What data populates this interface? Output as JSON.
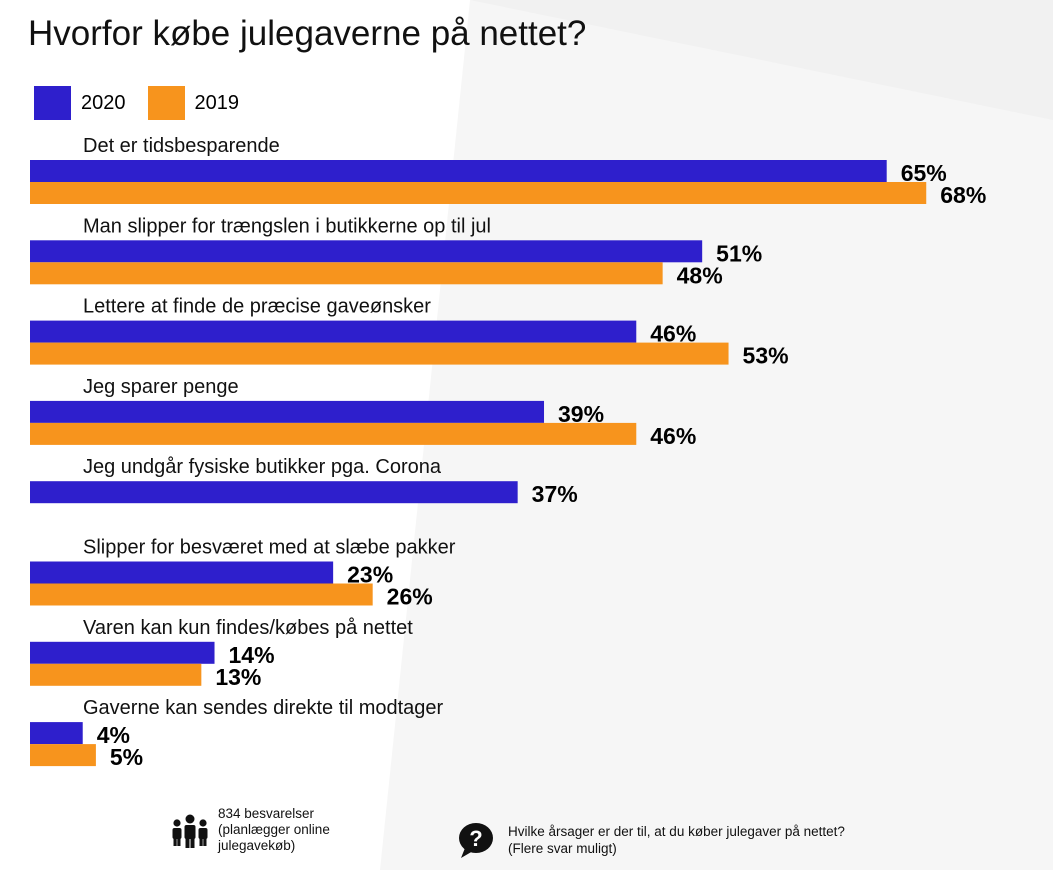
{
  "title": "Hvorfor købe julegaverne på nettet?",
  "legend": [
    {
      "label": "2020",
      "color": "#2E1FCC"
    },
    {
      "label": "2019",
      "color": "#F7941D"
    }
  ],
  "chart_data": {
    "type": "bar",
    "orientation": "horizontal",
    "title": "Hvorfor købe julegaverne på nettet?",
    "unit": "%",
    "categories": [
      "Det er tidsbesparende",
      "Man slipper for trængslen i butikkerne op til jul",
      "Lettere at finde de præcise gaveønsker",
      "Jeg sparer penge",
      "Jeg undgår fysiske butikker pga. Corona",
      "Slipper for besværet med at slæbe pakker",
      "Varen kan kun findes/købes på nettet",
      "Gaverne kan sendes direkte til modtager"
    ],
    "series": [
      {
        "name": "2020",
        "color": "#2E1FCC",
        "values": [
          65,
          51,
          46,
          39,
          37,
          23,
          14,
          4
        ]
      },
      {
        "name": "2019",
        "color": "#F7941D",
        "values": [
          68,
          48,
          53,
          46,
          null,
          26,
          13,
          5
        ]
      }
    ],
    "value_labels": [
      [
        "65%",
        "68%"
      ],
      [
        "51%",
        "48%"
      ],
      [
        "46%",
        "53%"
      ],
      [
        "39%",
        "46%"
      ],
      [
        "37%",
        null
      ],
      [
        "23%",
        "26%"
      ],
      [
        "14%",
        "13%"
      ],
      [
        "4%",
        "5%"
      ]
    ],
    "legend_position": "top-left",
    "grid": false
  },
  "footer": {
    "respondents_icon": "people-icon",
    "respondents_lines": [
      "834 besvarelser",
      "(planlægger online",
      "julegavekøb)"
    ],
    "question_icon": "question-bubble-icon",
    "question_lines": [
      "Hvilke årsager er der til, at du køber julegaver på nettet?",
      "(Flere svar muligt)"
    ]
  }
}
